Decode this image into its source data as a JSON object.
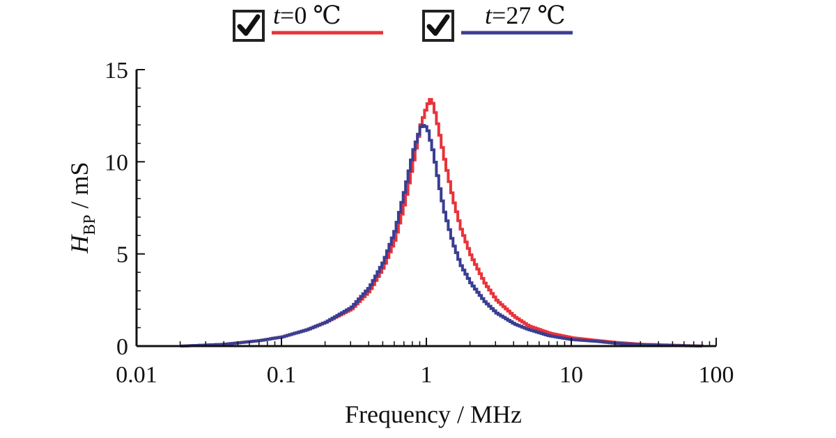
{
  "chart_data": {
    "type": "line",
    "xlabel": "Frequency / MHz",
    "ylabel_main": "H",
    "ylabel_sub": "BP",
    "ylabel_unit": " / mS",
    "xscale": "log",
    "xlim": [
      0.01,
      100
    ],
    "ylim": [
      0,
      15
    ],
    "xticks": [
      0.01,
      0.1,
      1,
      10,
      100
    ],
    "xtick_labels": [
      "0.01",
      "0.1",
      "1",
      "10",
      "100"
    ],
    "yticks": [
      0,
      5,
      10,
      15
    ],
    "ytick_labels": [
      "0",
      "5",
      "10",
      "15"
    ],
    "legend_placement": "top",
    "series": [
      {
        "name_var": "t",
        "name_value": "=0 ℃",
        "color": "#e8333a",
        "x": [
          0.02,
          0.04,
          0.07,
          0.1,
          0.15,
          0.2,
          0.3,
          0.4,
          0.5,
          0.6,
          0.7,
          0.8,
          0.9,
          1.0,
          1.05,
          1.1,
          1.2,
          1.3,
          1.5,
          1.7,
          2.0,
          2.5,
          3.0,
          4.0,
          5.0,
          7.0,
          10.0,
          15.0,
          20.0,
          30.0,
          50.0,
          80.0
        ],
        "y": [
          0.0,
          0.1,
          0.3,
          0.5,
          0.9,
          1.3,
          2.0,
          3.0,
          4.3,
          5.8,
          7.8,
          10.0,
          12.0,
          13.1,
          13.4,
          13.1,
          11.7,
          10.3,
          8.0,
          6.4,
          4.9,
          3.4,
          2.5,
          1.6,
          1.1,
          0.7,
          0.45,
          0.3,
          0.2,
          0.1,
          0.05,
          0.0
        ]
      },
      {
        "name_var": "t",
        "name_value": "=27 ℃",
        "color": "#3a3e92",
        "x": [
          0.02,
          0.04,
          0.07,
          0.1,
          0.15,
          0.2,
          0.3,
          0.4,
          0.5,
          0.6,
          0.7,
          0.8,
          0.9,
          0.95,
          1.0,
          1.1,
          1.2,
          1.3,
          1.5,
          1.7,
          2.0,
          2.5,
          3.0,
          4.0,
          5.0,
          7.0,
          10.0,
          15.0,
          20.0,
          30.0,
          50.0,
          80.0
        ],
        "y": [
          0.0,
          0.1,
          0.3,
          0.5,
          0.9,
          1.3,
          2.1,
          3.2,
          4.6,
          6.3,
          8.5,
          10.6,
          11.9,
          12.0,
          11.8,
          10.5,
          8.8,
          7.4,
          5.6,
          4.4,
          3.4,
          2.4,
          1.8,
          1.2,
          0.9,
          0.55,
          0.35,
          0.25,
          0.15,
          0.08,
          0.03,
          0.0
        ]
      }
    ]
  }
}
